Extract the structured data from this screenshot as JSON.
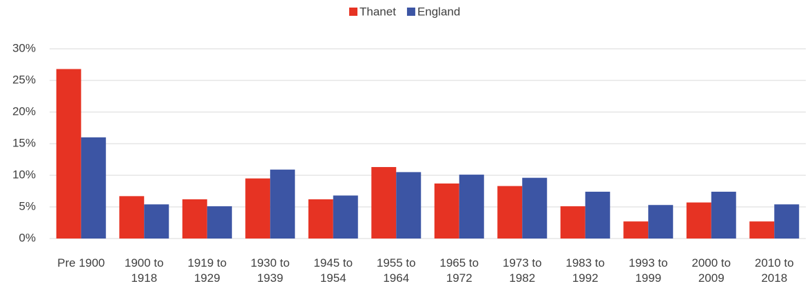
{
  "chart_data": {
    "type": "bar",
    "categories": [
      "Pre 1900",
      "1900 to 1918",
      "1919 to 1929",
      "1930 to 1939",
      "1945 to 1954",
      "1955 to 1964",
      "1965 to 1972",
      "1973 to 1982",
      "1983 to 1992",
      "1993 to 1999",
      "2000 to 2009",
      "2010 to 2018"
    ],
    "series": [
      {
        "name": "Thanet",
        "color": "#e63323",
        "values": [
          26.8,
          6.7,
          6.2,
          9.5,
          6.2,
          11.3,
          8.7,
          8.3,
          5.1,
          2.7,
          5.7,
          2.7
        ]
      },
      {
        "name": "England",
        "color": "#3c55a4",
        "values": [
          16.0,
          5.4,
          5.1,
          10.9,
          6.8,
          10.5,
          10.1,
          9.6,
          7.4,
          5.3,
          7.4,
          5.4
        ]
      }
    ],
    "ylim": [
      0,
      30
    ],
    "yticks": [
      {
        "value": 0,
        "label": "0%"
      },
      {
        "value": 5,
        "label": "5%"
      },
      {
        "value": 10,
        "label": "10%"
      },
      {
        "value": 15,
        "label": "15%"
      },
      {
        "value": 20,
        "label": "20%"
      },
      {
        "value": 25,
        "label": "25%"
      },
      {
        "value": 30,
        "label": "30%"
      }
    ],
    "grid": true,
    "legend": "top"
  }
}
